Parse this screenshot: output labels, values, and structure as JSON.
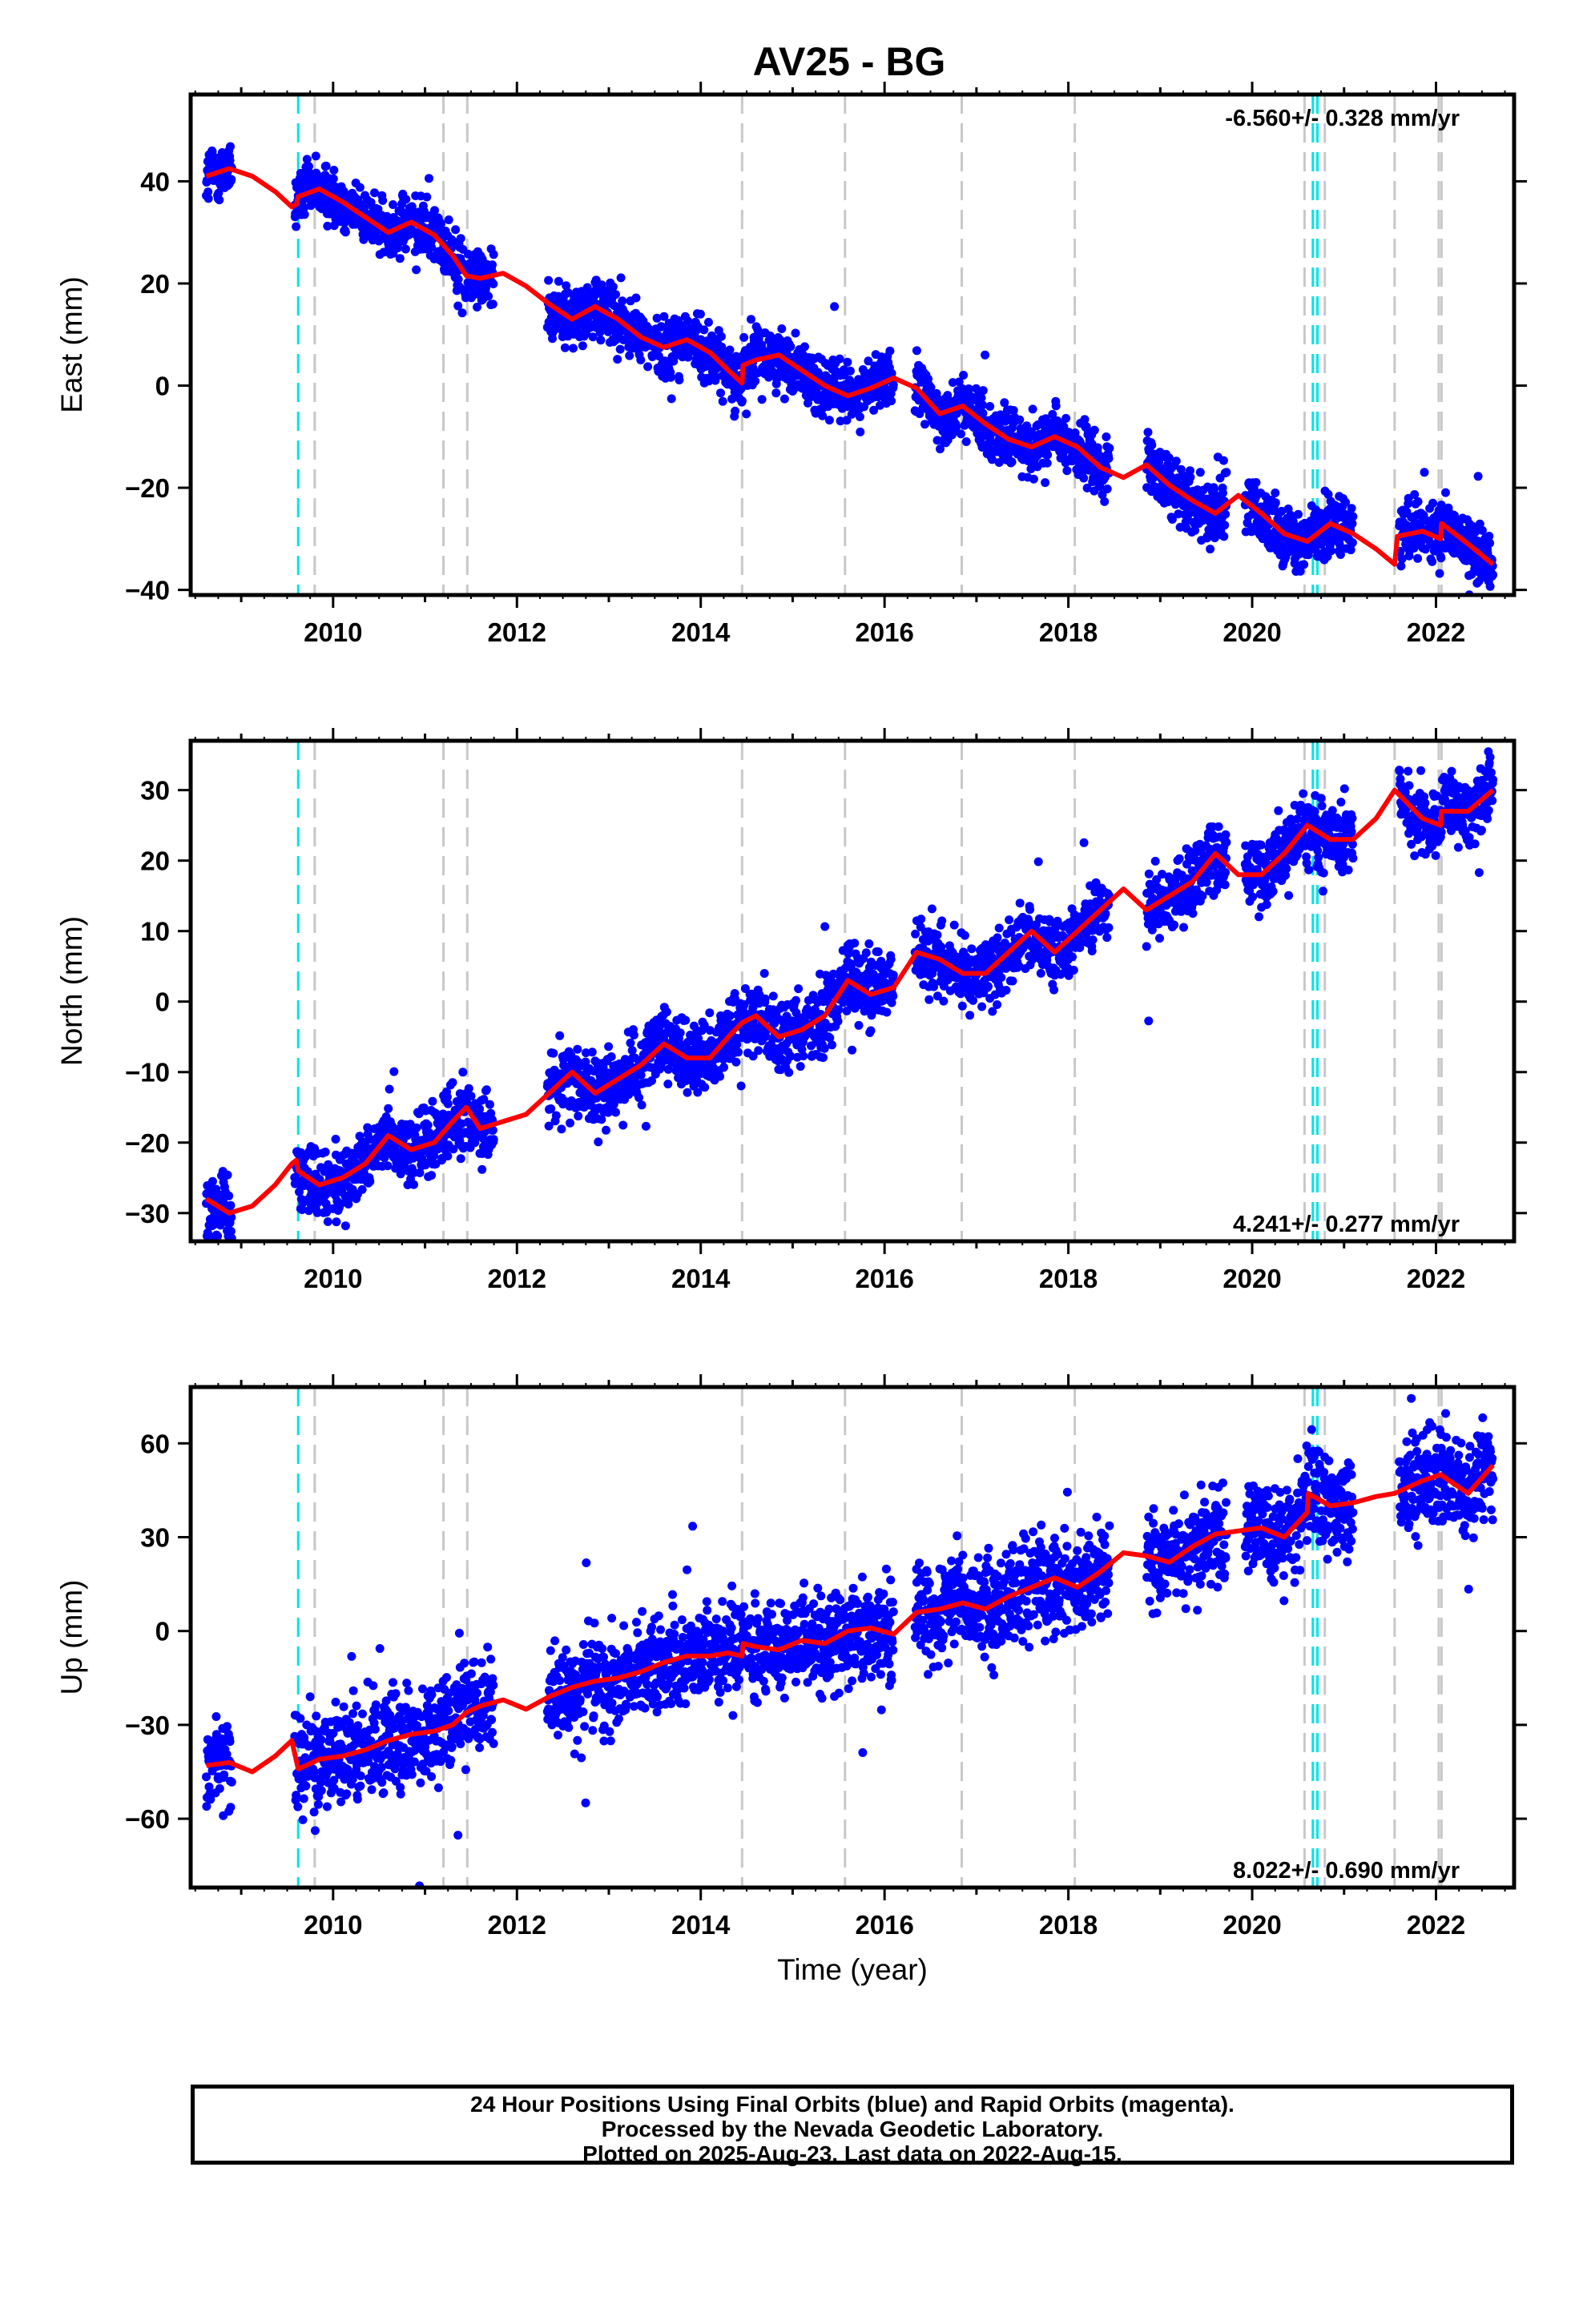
{
  "title": "AV25 - BG",
  "colors": {
    "points": "#0000ff",
    "model": "#ff0000",
    "steps_equipment": "#c8c8c8",
    "steps_earthquake": "#00e5e5"
  },
  "footer": {
    "line1": "24 Hour Positions Using Final Orbits (blue) and Rapid Orbits (magenta).",
    "line2": "Processed by the Nevada Geodetic Laboratory.",
    "line3": "Plotted on 2025-Aug-23. Last data on 2022-Aug-15."
  },
  "chart_data": [
    {
      "type": "scatter",
      "title": "AV25 - BG",
      "xlabel": "",
      "ylabel": "East (mm)",
      "rate_label": "-6.560+/- 0.328 mm/yr",
      "rate_position": "top-right",
      "xlim": [
        2008.45,
        2022.85
      ],
      "ylim": [
        -41,
        57
      ],
      "xticks": [
        2010,
        2012,
        2014,
        2016,
        2018,
        2020,
        2022
      ],
      "yticks": [
        -40,
        -20,
        0,
        20,
        40
      ],
      "grid": false,
      "rate_mm_per_yr": -6.56,
      "series": [
        {
          "kind": "model",
          "x": [
            2008.62,
            2008.87,
            2009.12,
            2009.37,
            2009.55,
            2009.6,
            2009.62,
            2009.85,
            2010.1,
            2010.35,
            2010.6,
            2010.85,
            2011.1,
            2011.3,
            2011.45,
            2011.6,
            2011.85,
            2012.1,
            2012.35,
            2012.6,
            2012.85,
            2013.1,
            2013.35,
            2013.6,
            2013.85,
            2014.1,
            2014.3,
            2014.45,
            2014.46,
            2014.6,
            2014.85,
            2015.1,
            2015.35,
            2015.6,
            2015.85,
            2016.1,
            2016.35,
            2016.6,
            2016.85,
            2017.1,
            2017.35,
            2017.6,
            2017.85,
            2018.1,
            2018.35,
            2018.6,
            2018.85,
            2019.1,
            2019.35,
            2019.6,
            2019.85,
            2020.1,
            2020.35,
            2020.6,
            2020.85,
            2021.1,
            2021.35,
            2021.55,
            2021.58,
            2021.85,
            2022.05,
            2022.06,
            2022.35,
            2022.62
          ],
          "y": [
            41,
            42.5,
            41,
            38,
            35,
            35.5,
            37,
            38.5,
            36,
            33,
            30,
            32,
            29.5,
            25.5,
            21.5,
            21,
            22,
            19.5,
            16,
            13,
            15.5,
            13,
            9.5,
            7.5,
            9,
            6.5,
            3,
            0.5,
            4,
            5,
            6,
            3,
            0,
            -2,
            -0.5,
            1.5,
            -0.5,
            -5.5,
            -4,
            -7.5,
            -10.5,
            -12,
            -10,
            -12,
            -16,
            -18,
            -15.5,
            -19.5,
            -22.5,
            -25,
            -21.5,
            -25,
            -29,
            -30.5,
            -27,
            -29,
            -32,
            -35,
            -29.5,
            -28.5,
            -30,
            -27,
            -31,
            -35
          ]
        }
      ]
    },
    {
      "type": "scatter",
      "xlabel": "",
      "ylabel": "North (mm)",
      "rate_label": "4.241+/- 0.277 mm/yr",
      "rate_position": "bottom-right",
      "xlim": [
        2008.45,
        2022.85
      ],
      "ylim": [
        -34,
        37
      ],
      "xticks": [
        2010,
        2012,
        2014,
        2016,
        2018,
        2020,
        2022
      ],
      "yticks": [
        -30,
        -20,
        -10,
        0,
        10,
        20,
        30
      ],
      "grid": false,
      "rate_mm_per_yr": 4.241,
      "series": [
        {
          "kind": "model",
          "x": [
            2008.62,
            2008.87,
            2009.12,
            2009.37,
            2009.55,
            2009.6,
            2009.62,
            2009.85,
            2010.1,
            2010.35,
            2010.6,
            2010.85,
            2011.1,
            2011.3,
            2011.45,
            2011.6,
            2011.85,
            2012.1,
            2012.35,
            2012.6,
            2012.85,
            2013.1,
            2013.35,
            2013.6,
            2013.85,
            2014.1,
            2014.3,
            2014.45,
            2014.6,
            2014.85,
            2015.1,
            2015.35,
            2015.6,
            2015.85,
            2016.1,
            2016.35,
            2016.6,
            2016.85,
            2017.1,
            2017.35,
            2017.6,
            2017.85,
            2018.1,
            2018.35,
            2018.6,
            2018.85,
            2019.1,
            2019.35,
            2019.6,
            2019.85,
            2020.1,
            2020.35,
            2020.6,
            2020.85,
            2021.1,
            2021.35,
            2021.55,
            2021.85,
            2022.05,
            2022.06,
            2022.35,
            2022.62
          ],
          "y": [
            -28,
            -30,
            -29,
            -26,
            -23,
            -22.5,
            -24,
            -26,
            -25,
            -23,
            -19,
            -21,
            -20,
            -17,
            -15,
            -18,
            -17,
            -16,
            -13,
            -10,
            -13,
            -11,
            -9,
            -6,
            -8,
            -8,
            -5,
            -3,
            -2,
            -5,
            -4,
            -2,
            3,
            1,
            2,
            7,
            6,
            4,
            4,
            7,
            10,
            7,
            10,
            13,
            16,
            13,
            15,
            17,
            21,
            18,
            18,
            21,
            25,
            23,
            23,
            26,
            30,
            26,
            25,
            27,
            27,
            30
          ]
        }
      ]
    },
    {
      "type": "scatter",
      "xlabel": "Time (year)",
      "ylabel": "Up (mm)",
      "rate_label": "8.022+/- 0.690 mm/yr",
      "rate_position": "bottom-right",
      "xlim": [
        2008.45,
        2022.85
      ],
      "ylim": [
        -82,
        78
      ],
      "xticks": [
        2010,
        2012,
        2014,
        2016,
        2018,
        2020,
        2022
      ],
      "yticks": [
        -60,
        -30,
        0,
        30,
        60
      ],
      "grid": false,
      "rate_mm_per_yr": 8.022,
      "series": [
        {
          "kind": "model",
          "x": [
            2008.62,
            2008.87,
            2009.12,
            2009.37,
            2009.55,
            2009.62,
            2009.63,
            2009.85,
            2010.1,
            2010.35,
            2010.6,
            2010.85,
            2011.1,
            2011.3,
            2011.45,
            2011.6,
            2011.85,
            2012.1,
            2012.35,
            2012.6,
            2012.85,
            2013.1,
            2013.35,
            2013.6,
            2013.85,
            2014.1,
            2014.3,
            2014.45,
            2014.46,
            2014.6,
            2014.85,
            2015.1,
            2015.35,
            2015.6,
            2015.85,
            2016.1,
            2016.35,
            2016.6,
            2016.85,
            2017.1,
            2017.35,
            2017.6,
            2017.85,
            2018.1,
            2018.35,
            2018.6,
            2018.85,
            2019.1,
            2019.35,
            2019.6,
            2019.85,
            2020.1,
            2020.35,
            2020.6,
            2020.61,
            2020.85,
            2021.1,
            2021.35,
            2021.55,
            2021.85,
            2022.05,
            2022.35,
            2022.62
          ],
          "y": [
            -43,
            -42,
            -45,
            -40,
            -35,
            -44,
            -44,
            -41,
            -40,
            -38,
            -35,
            -33,
            -32,
            -30,
            -26,
            -24,
            -22,
            -25,
            -21,
            -18,
            -16,
            -15,
            -13,
            -10,
            -8,
            -8,
            -7,
            -8,
            -4,
            -5,
            -6,
            -3,
            -4,
            0,
            1,
            -1,
            6,
            7,
            9,
            7,
            11,
            14,
            17,
            14,
            19,
            25,
            24,
            22,
            27,
            31,
            32,
            33,
            30,
            38,
            44,
            40,
            41,
            43,
            44,
            48,
            50,
            44,
            53
          ]
        }
      ]
    }
  ]
}
